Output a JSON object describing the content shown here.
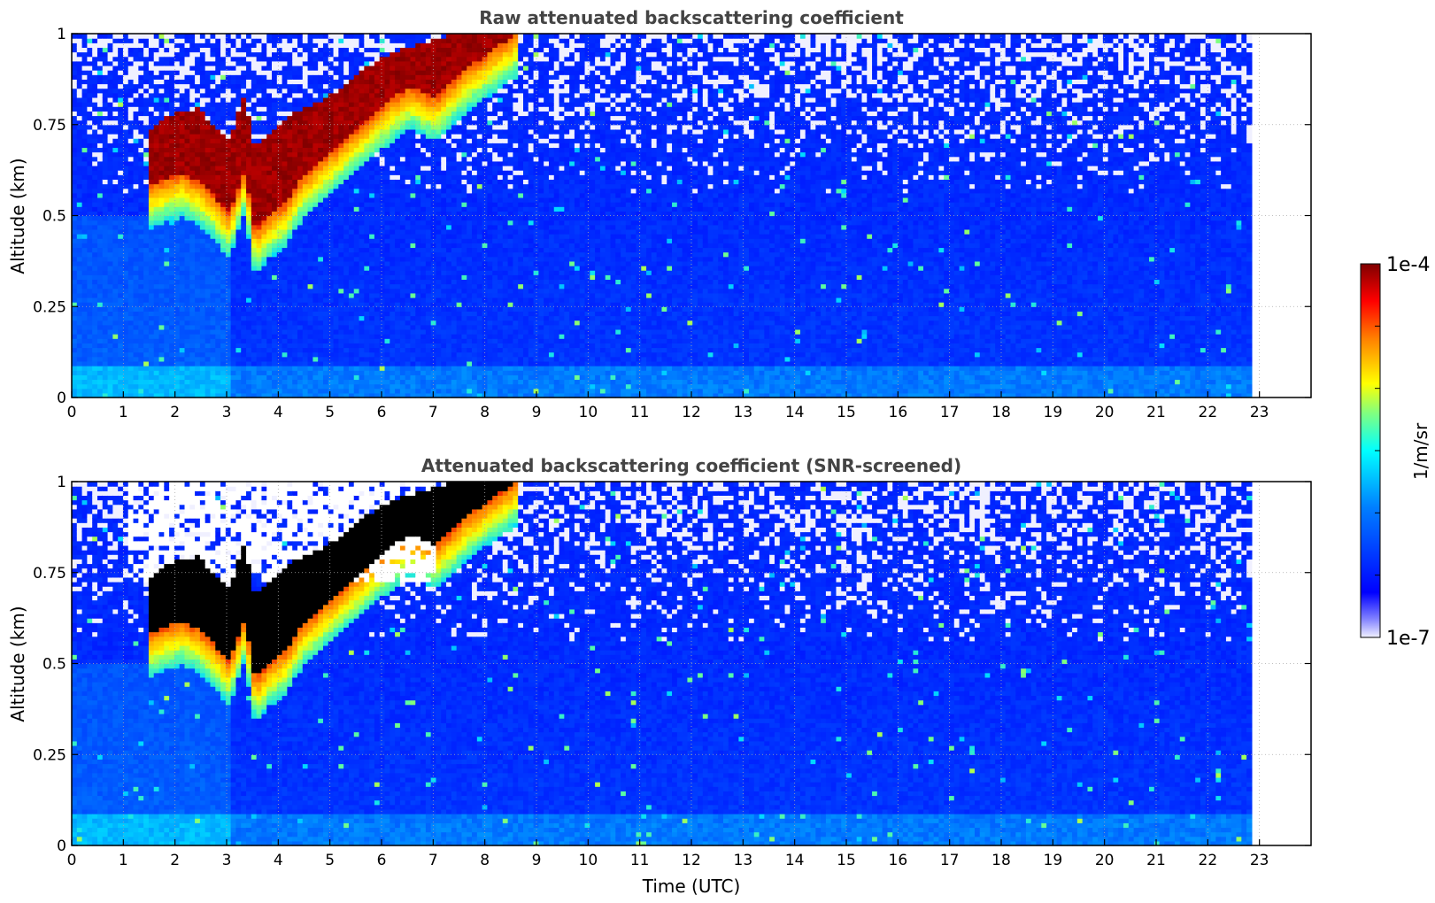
{
  "chart_data": [
    {
      "type": "heatmap",
      "title": "Raw attenuated backscattering coefficient",
      "xlabel": "",
      "ylabel": "Altitude (km)",
      "xlim": [
        0,
        24
      ],
      "ylim": [
        0,
        1
      ],
      "data_extent_x": [
        0,
        22.85
      ],
      "x_ticks": [
        "0",
        "1",
        "2",
        "3",
        "4",
        "5",
        "6",
        "7",
        "8",
        "9",
        "10",
        "11",
        "12",
        "13",
        "14",
        "15",
        "16",
        "17",
        "18",
        "19",
        "20",
        "21",
        "22",
        "23"
      ],
      "y_ticks": [
        "0",
        "0.25",
        "0.5",
        "0.75",
        "1"
      ],
      "grid": true,
      "color_scale": "log",
      "clim": [
        "1e-7",
        "1e-4"
      ],
      "features": {
        "top_boundary_utc": [
          1.4,
          1.5,
          1.8,
          2.1,
          2.4,
          2.7,
          3.0,
          3.3,
          3.5,
          3.8,
          4.1,
          4.4,
          4.8,
          5.2,
          5.6,
          6.0,
          6.5,
          7.0,
          7.6,
          8.1,
          8.6
        ],
        "top_boundary_km": [
          0.7,
          0.74,
          0.77,
          0.78,
          0.79,
          0.74,
          0.7,
          0.83,
          0.68,
          0.72,
          0.76,
          0.79,
          0.81,
          0.85,
          0.9,
          0.93,
          0.96,
          0.98,
          1.0,
          1.0,
          1.0
        ],
        "bottom_boundary_km": [
          0.6,
          0.58,
          0.6,
          0.61,
          0.59,
          0.55,
          0.5,
          0.62,
          0.45,
          0.5,
          0.53,
          0.6,
          0.65,
          0.7,
          0.75,
          0.8,
          0.85,
          0.82,
          0.9,
          0.95,
          1.0
        ]
      }
    },
    {
      "type": "heatmap",
      "title": "Attenuated backscattering coefficient (SNR-screened)",
      "xlabel": "Time (UTC)",
      "ylabel": "Altitude (km)",
      "xlim": [
        0,
        24
      ],
      "ylim": [
        0,
        1
      ],
      "data_extent_x": [
        0,
        22.85
      ],
      "x_ticks": [
        "0",
        "1",
        "2",
        "3",
        "4",
        "5",
        "6",
        "7",
        "8",
        "9",
        "10",
        "11",
        "12",
        "13",
        "14",
        "15",
        "16",
        "17",
        "18",
        "19",
        "20",
        "21",
        "22",
        "23"
      ],
      "y_ticks": [
        "0",
        "0.25",
        "0.5",
        "0.75",
        "1"
      ],
      "grid": true,
      "color_scale": "log",
      "clim": [
        "1e-7",
        "1e-4"
      ],
      "saturated_color": "#000000"
    }
  ],
  "colorbar": {
    "label": "1/m/sr",
    "max_label": "1e-4",
    "min_label": "1e-7",
    "colormap": "jet",
    "colors": [
      "#0000a0",
      "#0000ff",
      "#0080ff",
      "#00ffff",
      "#80ff80",
      "#ffff00",
      "#ff8000",
      "#ff0000",
      "#800000"
    ]
  }
}
